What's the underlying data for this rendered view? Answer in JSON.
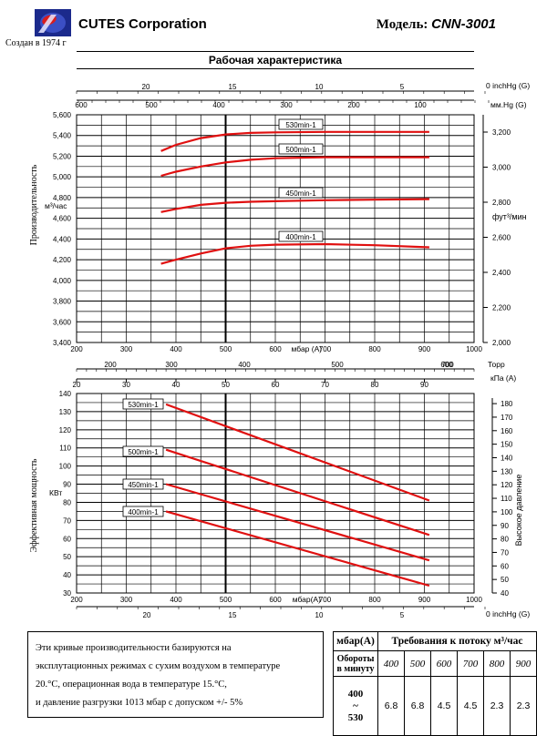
{
  "header": {
    "company": "CUTES Corporation",
    "founded": "Создан в 1974 г",
    "model_label": "Модель:",
    "model": "CNN-3001",
    "title": "Рабочая характеристика"
  },
  "colors": {
    "curve": "#e01010",
    "grid": "#000000",
    "label_text": "#1a1acc"
  },
  "chart_data": [
    {
      "type": "line",
      "title": "Рабочая характеристика",
      "ylabel": "Производительность",
      "y_unit": "м³/час",
      "ylim": [
        3400,
        5600
      ],
      "y_ticks": [
        "3,400",
        "3,600",
        "3,800",
        "4,000",
        "4,200",
        "4,400",
        "4,600",
        "4,800",
        "5,000",
        "5,200",
        "5,400",
        "5,600"
      ],
      "xlim": [
        200,
        1000
      ],
      "x_ticks": [
        "200",
        "300",
        "400",
        "500",
        "600",
        "700",
        "800",
        "900",
        "1000"
      ],
      "x_label": "мбар (А)",
      "right_axis": {
        "label": "фут³/мин",
        "ticks": [
          "2,000",
          "2,200",
          "2,400",
          "2,600",
          "2,800",
          "3,000",
          "3,200"
        ]
      },
      "top_axis_inchhg": {
        "label": "inchHg (G)",
        "ticks": [
          "0",
          "5",
          "10",
          "15",
          "20"
        ]
      },
      "top_axis_mmhg": {
        "label": "мм.Hg (G)",
        "ticks": [
          "100",
          "200",
          "300",
          "400",
          "500",
          "600"
        ]
      },
      "grid": true,
      "series": [
        {
          "name": "530min-1",
          "x": [
            370,
            400,
            450,
            500,
            550,
            600,
            700,
            800,
            910
          ],
          "y": [
            5250,
            5310,
            5375,
            5410,
            5425,
            5430,
            5435,
            5435,
            5435
          ]
        },
        {
          "name": "500min-1",
          "x": [
            370,
            400,
            450,
            500,
            550,
            600,
            700,
            800,
            910
          ],
          "y": [
            5010,
            5050,
            5100,
            5140,
            5165,
            5180,
            5190,
            5190,
            5190
          ]
        },
        {
          "name": "450min-1",
          "x": [
            370,
            400,
            450,
            500,
            550,
            600,
            700,
            800,
            910
          ],
          "y": [
            4660,
            4690,
            4730,
            4750,
            4760,
            4765,
            4775,
            4780,
            4785
          ]
        },
        {
          "name": "400min-1",
          "x": [
            370,
            400,
            450,
            500,
            550,
            600,
            700,
            800,
            910
          ],
          "y": [
            4160,
            4200,
            4260,
            4310,
            4335,
            4345,
            4350,
            4340,
            4320
          ]
        }
      ]
    },
    {
      "type": "line",
      "ylabel": "Эффективная мощность",
      "y_unit": "КВт",
      "ylim": [
        30,
        140
      ],
      "y_ticks": [
        "30",
        "40",
        "50",
        "60",
        "70",
        "80",
        "90",
        "100",
        "110",
        "120",
        "130",
        "140"
      ],
      "xlim": [
        200,
        1000
      ],
      "x_ticks": [
        "200",
        "300",
        "400",
        "500",
        "600",
        "700",
        "800",
        "900",
        "1000"
      ],
      "x_label": "мбар(А)",
      "top_axis_torr": {
        "label": "Торр",
        "ticks": [
          "200",
          "300",
          "400",
          "500",
          "600",
          "700"
        ]
      },
      "top_axis_kpa": {
        "label": "кПа (А)",
        "ticks": [
          "20",
          "30",
          "40",
          "50",
          "60",
          "70",
          "80",
          "90"
        ]
      },
      "bottom_axis_inchhg": {
        "label": "inchHg (G)",
        "ticks": [
          "20",
          "15",
          "10",
          "5",
          "0"
        ]
      },
      "right_axis": {
        "label": "Высокое давление",
        "ticks": [
          "40",
          "50",
          "60",
          "70",
          "80",
          "90",
          "100",
          "110",
          "120",
          "130",
          "140",
          "150",
          "160",
          "170",
          "180"
        ]
      },
      "grid": true,
      "series": [
        {
          "name": "530min-1",
          "x": [
            380,
            910
          ],
          "y": [
            134,
            81
          ]
        },
        {
          "name": "500min-1",
          "x": [
            380,
            910
          ],
          "y": [
            109,
            62
          ]
        },
        {
          "name": "450min-1",
          "x": [
            380,
            910
          ],
          "y": [
            90,
            48
          ]
        },
        {
          "name": "400min-1",
          "x": [
            380,
            910
          ],
          "y": [
            75,
            34
          ]
        }
      ]
    }
  ],
  "notes": [
    "Эти кривые производительности базируются на",
    "эксплутационных режимах с сухим воздухом в температуре",
    "20.°С, операционная вода в температуре 15.°С,",
    "и давление разгрузки 1013 мбар с допуском +/- 5%"
  ],
  "spec_table": {
    "unit": "мбар(А)",
    "requirement": "Требования к потоку м³/час",
    "rpm_header": "Обороты в минуту",
    "pressures": [
      "400",
      "500",
      "600",
      "700",
      "800",
      "900"
    ],
    "rpm_range": [
      "400",
      "~",
      "530"
    ],
    "flows": [
      "6.8",
      "6.8",
      "4.5",
      "4.5",
      "2.3",
      "2.3"
    ]
  }
}
